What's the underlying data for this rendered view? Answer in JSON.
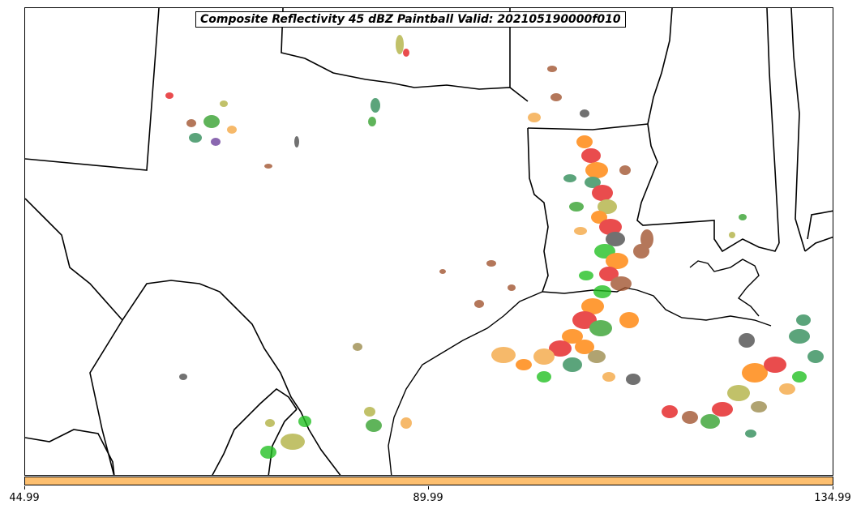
{
  "title": "Composite Reflectivity 45 dBZ Paintball Valid: 202105190000f010",
  "colorbar": {
    "color": "#fdbf6f",
    "ticks": [
      "44.99",
      "89.99",
      "134.99"
    ]
  },
  "ensemble_colors": [
    "#e31a1c",
    "#ff7f00",
    "#33a02c",
    "#1fbf1f",
    "#6a3d9a",
    "#a0522d",
    "#b0b040",
    "#4a4a4a",
    "#f08080",
    "#9a8a4a",
    "#f4a641",
    "#2e8b57"
  ]
}
